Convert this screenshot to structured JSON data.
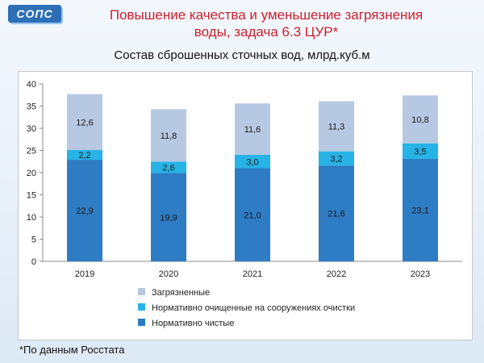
{
  "header": {
    "logo_text": "СОПС",
    "title_line1": "Повышение качества и уменьшение загрязнения",
    "title_line2": "воды, задача 6.3 ЦУР*"
  },
  "footnote": "*По данным Росстата",
  "colors": {
    "title": "#cc1f2c",
    "clean": "#2e7cc4",
    "treated": "#27b3e6",
    "polluted": "#b7c8e3"
  },
  "chart_data": {
    "type": "bar",
    "stacked": true,
    "title": "Состав сброшенных сточных вод, млрд.куб.м",
    "xlabel": "",
    "ylabel": "",
    "categories": [
      "2019",
      "2020",
      "2021",
      "2022",
      "2023"
    ],
    "ylim": [
      0,
      40
    ],
    "yticks": [
      0,
      5,
      10,
      15,
      20,
      25,
      30,
      35,
      40
    ],
    "grid": false,
    "legend_position": "bottom",
    "series": [
      {
        "name": "Нормативно чистые",
        "color": "#2e7cc4",
        "values": [
          22.9,
          19.9,
          21.0,
          21.6,
          23.1
        ],
        "labels": [
          "22,9",
          "19,9",
          "21,0",
          "21,6",
          "23,1"
        ]
      },
      {
        "name": "Нормативно очищенные на сооружениях очистки",
        "color": "#27b3e6",
        "values": [
          2.2,
          2.6,
          3.0,
          3.2,
          3.5
        ],
        "labels": [
          "2,2",
          "2,6",
          "3,0",
          "3,2",
          "3,5"
        ]
      },
      {
        "name": "Загрязненные",
        "color": "#b7c8e3",
        "values": [
          12.6,
          11.8,
          11.6,
          11.3,
          10.8
        ],
        "labels": [
          "12,6",
          "11,8",
          "11,6",
          "11,3",
          "10,8"
        ]
      }
    ]
  }
}
